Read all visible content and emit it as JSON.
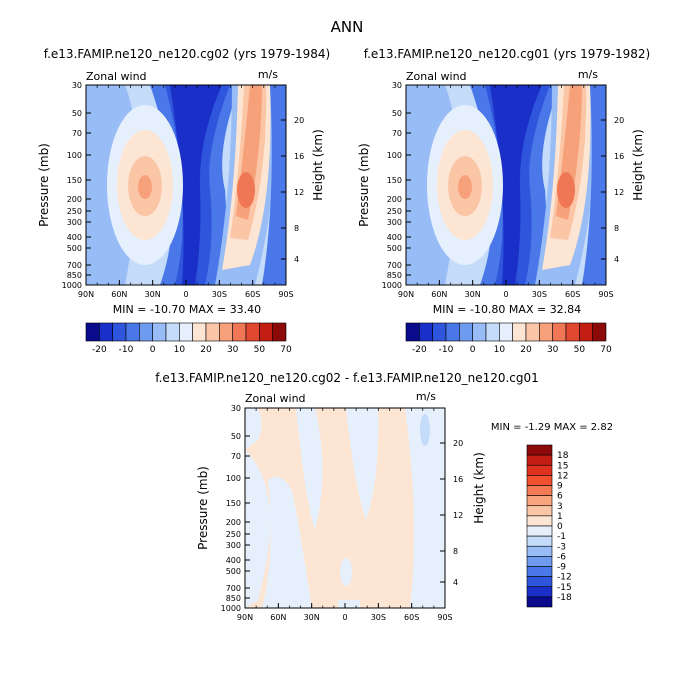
{
  "figure_title": "ANN",
  "chart_data": [
    {
      "type": "heatmap",
      "title": "f.e13.FAMIP.ne120_ne120.cg02 (yrs 1979-1984)",
      "label_left": "Zonal wind",
      "label_right": "m/s",
      "ylabel": "Pressure (mb)",
      "ylabel_right": "Height (km)",
      "x_ticks": [
        "90N",
        "60N",
        "30N",
        "0",
        "30S",
        "60S",
        "90S"
      ],
      "y_ticks": [
        "30",
        "50",
        "70",
        "100",
        "150",
        "200",
        "250",
        "300",
        "400",
        "500",
        "700",
        "850",
        "1000"
      ],
      "height_ticks": [
        "20",
        "16",
        "12",
        "8",
        "4"
      ],
      "stats": "MIN = -10.70   MAX =  33.40",
      "min": -10.7,
      "max": 33.4
    },
    {
      "type": "heatmap",
      "title": "f.e13.FAMIP.ne120_ne120.cg01 (yrs 1979-1982)",
      "label_left": "Zonal wind",
      "label_right": "m/s",
      "ylabel": "Pressure (mb)",
      "ylabel_right": "Height (km)",
      "x_ticks": [
        "90N",
        "60N",
        "30N",
        "0",
        "30S",
        "60S",
        "90S"
      ],
      "y_ticks": [
        "30",
        "50",
        "70",
        "100",
        "150",
        "200",
        "250",
        "300",
        "400",
        "500",
        "700",
        "850",
        "1000"
      ],
      "height_ticks": [
        "20",
        "16",
        "12",
        "8",
        "4"
      ],
      "stats": "MIN = -10.80   MAX =  32.84",
      "min": -10.8,
      "max": 32.84
    },
    {
      "type": "heatmap",
      "title": "f.e13.FAMIP.ne120_ne120.cg02 - f.e13.FAMIP.ne120_ne120.cg01",
      "label_left": "Zonal wind",
      "label_right": "m/s",
      "ylabel": "Pressure (mb)",
      "ylabel_right": "Height (km)",
      "x_ticks": [
        "90N",
        "60N",
        "30N",
        "0",
        "30S",
        "60S",
        "90S"
      ],
      "y_ticks": [
        "30",
        "50",
        "70",
        "100",
        "150",
        "200",
        "250",
        "300",
        "400",
        "500",
        "700",
        "850",
        "1000"
      ],
      "height_ticks": [
        "20",
        "16",
        "12",
        "8",
        "4"
      ],
      "stats": "MIN =   -1.29   MAX =    2.82",
      "min": -1.29,
      "max": 2.82
    }
  ],
  "colorbar_top": {
    "labels": [
      "-20",
      "-10",
      "0",
      "10",
      "20",
      "30",
      "50",
      "70"
    ],
    "colors": [
      "#0a0a8c",
      "#1a2fc8",
      "#2f55dd",
      "#4a78e8",
      "#6e9aef",
      "#98bcf5",
      "#c4dbfa",
      "#e6f0fd",
      "#fde5d3",
      "#fbc6a6",
      "#f7a17b",
      "#f07755",
      "#e04830",
      "#c41e14",
      "#8c0a0a"
    ]
  },
  "colorbar_diff": {
    "labels": [
      "18",
      "15",
      "12",
      "9",
      "6",
      "3",
      "1",
      "0",
      "-1",
      "-3",
      "-6",
      "-9",
      "-12",
      "-15",
      "-18"
    ],
    "colors": [
      "#8c0a0a",
      "#c41e14",
      "#e03020",
      "#f05030",
      "#f47a55",
      "#f8a57e",
      "#fbc6a6",
      "#fde5d3",
      "#e6f0fd",
      "#c4dbfa",
      "#98bcf5",
      "#6e9aef",
      "#4a78e8",
      "#2f55dd",
      "#1a2fc8",
      "#0a0a8c"
    ]
  }
}
